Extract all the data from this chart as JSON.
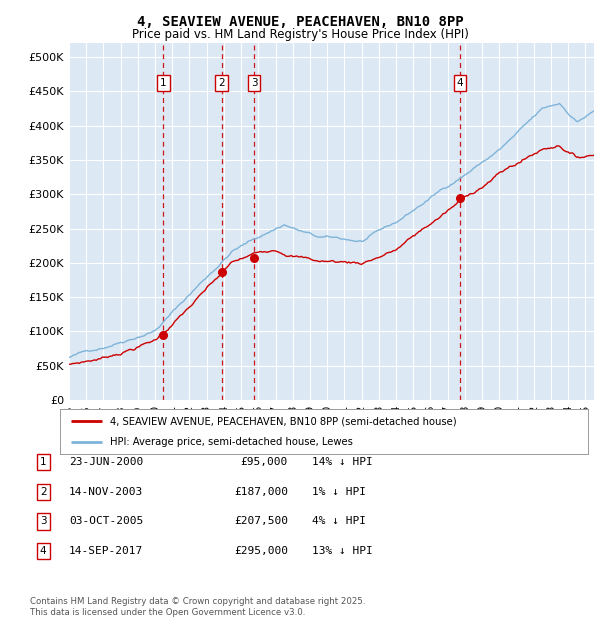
{
  "title": "4, SEAVIEW AVENUE, PEACEHAVEN, BN10 8PP",
  "subtitle": "Price paid vs. HM Land Registry's House Price Index (HPI)",
  "ylim": [
    0,
    520000
  ],
  "yticks": [
    0,
    50000,
    100000,
    150000,
    200000,
    250000,
    300000,
    350000,
    400000,
    450000,
    500000
  ],
  "ytick_labels": [
    "£0",
    "£50K",
    "£100K",
    "£150K",
    "£200K",
    "£250K",
    "£300K",
    "£350K",
    "£400K",
    "£450K",
    "£500K"
  ],
  "xlim_start": 1995.0,
  "xlim_end": 2025.5,
  "bg_color": "#dce9f5",
  "grid_color": "#ffffff",
  "transaction_dates": [
    2000.478,
    2003.869,
    2005.753,
    2017.706
  ],
  "transaction_prices": [
    95000,
    187000,
    207500,
    295000
  ],
  "transaction_labels": [
    "1",
    "2",
    "3",
    "4"
  ],
  "legend_line1": "4, SEAVIEW AVENUE, PEACEHAVEN, BN10 8PP (semi-detached house)",
  "legend_line2": "HPI: Average price, semi-detached house, Lewes",
  "table_rows": [
    {
      "label": "1",
      "date": "23-JUN-2000",
      "price": "£95,000",
      "hpi": "14% ↓ HPI"
    },
    {
      "label": "2",
      "date": "14-NOV-2003",
      "price": "£187,000",
      "hpi": "1% ↓ HPI"
    },
    {
      "label": "3",
      "date": "03-OCT-2005",
      "price": "£207,500",
      "hpi": "4% ↓ HPI"
    },
    {
      "label": "4",
      "date": "14-SEP-2017",
      "price": "£295,000",
      "hpi": "13% ↓ HPI"
    }
  ],
  "footer": "Contains HM Land Registry data © Crown copyright and database right 2025.\nThis data is licensed under the Open Government Licence v3.0.",
  "line_color_red": "#cc0000",
  "line_color_blue": "#7fb3d9",
  "vline_color": "#cc0000"
}
